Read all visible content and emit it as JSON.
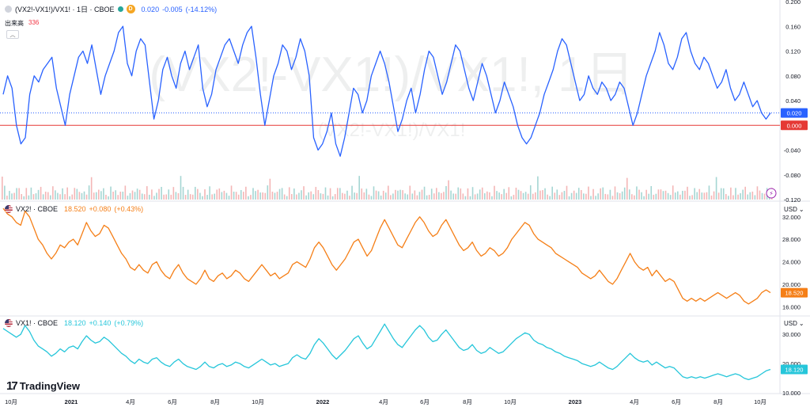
{
  "pane1": {
    "symbol": "(VX2!-VX1!)/VX1! · 1日 · CBOE",
    "badge": "D",
    "last": "0.020",
    "change": "-0.005",
    "change_pct": "(-14.12%)",
    "volume_label": "出来高",
    "volume_value": "336",
    "watermark_big": "(VX2!-VX1!)/VX1!, 1日",
    "watermark_small": "(VX2!-VX1!)/VX1!",
    "price_tag": "0.020",
    "zero_tag": "0.000",
    "axis_ticks": [
      "0.200",
      "0.160",
      "0.120",
      "0.080",
      "0.040",
      "-0.040",
      "-0.080",
      "-0.120"
    ]
  },
  "pane2": {
    "symbol": "VX2! · CBOE",
    "last": "18.520",
    "change": "+0.080",
    "change_pct": "(+0.43%)",
    "currency": "USD",
    "price_tag": "18.520",
    "axis_ticks": [
      "32.000",
      "28.000",
      "24.000",
      "20.000",
      "16.000"
    ]
  },
  "pane3": {
    "symbol": "VX1! · CBOE",
    "last": "18.120",
    "change": "+0.140",
    "change_pct": "(+0.79%)",
    "currency": "USD",
    "price_tag": "18.120",
    "axis_ticks": [
      "30.000",
      "20.000",
      "10.000"
    ]
  },
  "time_axis": [
    "10月",
    "2021",
    "4月",
    "6月",
    "8月",
    "10月",
    "2022",
    "4月",
    "6月",
    "8月",
    "10月",
    "2023",
    "4月",
    "6月",
    "8月",
    "10月"
  ],
  "brand": "TradingView",
  "colors": {
    "spread": "#2962ff",
    "vx2": "#f57f17",
    "vx1": "#26c6da",
    "zero_line": "#e53935",
    "vol_up": "#a5d6d3",
    "vol_down": "#f4b6b6",
    "negative": "#f23645"
  },
  "chart_data": [
    {
      "type": "line",
      "title": "(VX2!-VX1!)/VX1! · 1日 · CBOE",
      "x_start": "2020-10",
      "x_end": "2023-10",
      "ylim": [
        -0.12,
        0.2
      ],
      "reference_line": 0,
      "series": [
        {
          "values": [
            0.05,
            0.08,
            0.06,
            0.0,
            -0.03,
            -0.02,
            0.05,
            0.08,
            0.07,
            0.09,
            0.1,
            0.11,
            0.06,
            0.03,
            0.0,
            0.05,
            0.08,
            0.11,
            0.12,
            0.1,
            0.13,
            0.09,
            0.05,
            0.08,
            0.1,
            0.12,
            0.15,
            0.16,
            0.1,
            0.08,
            0.12,
            0.14,
            0.13,
            0.07,
            0.01,
            0.04,
            0.09,
            0.11,
            0.08,
            0.06,
            0.1,
            0.12,
            0.09,
            0.11,
            0.13,
            0.06,
            0.03,
            0.05,
            0.09,
            0.11,
            0.13,
            0.14,
            0.12,
            0.1,
            0.13,
            0.15,
            0.16,
            0.11,
            0.05,
            0.0,
            0.04,
            0.08,
            0.1,
            0.13,
            0.12,
            0.09,
            0.11,
            0.14,
            0.12,
            0.08,
            -0.02,
            -0.04,
            -0.03,
            -0.01,
            0.02,
            -0.03,
            -0.05,
            -0.02,
            0.02,
            0.06,
            0.05,
            0.02,
            0.04,
            0.08,
            0.1,
            0.12,
            0.1,
            0.07,
            0.03,
            -0.01,
            0.01,
            0.04,
            0.06,
            0.02,
            0.05,
            0.09,
            0.12,
            0.11,
            0.08,
            0.05,
            0.07,
            0.1,
            0.13,
            0.12,
            0.09,
            0.06,
            0.04,
            0.07,
            0.1,
            0.08,
            0.05,
            0.02,
            0.04,
            0.07,
            0.05,
            0.03,
            0.0,
            -0.02,
            -0.03,
            -0.02,
            0.0,
            0.02,
            0.05,
            0.07,
            0.09,
            0.12,
            0.14,
            0.13,
            0.1,
            0.07,
            0.04,
            0.05,
            0.08,
            0.06,
            0.05,
            0.07,
            0.06,
            0.04,
            0.05,
            0.07,
            0.06,
            0.03,
            0.0,
            0.02,
            0.05,
            0.08,
            0.1,
            0.12,
            0.15,
            0.13,
            0.1,
            0.09,
            0.11,
            0.14,
            0.15,
            0.12,
            0.1,
            0.09,
            0.11,
            0.1,
            0.08,
            0.06,
            0.07,
            0.09,
            0.06,
            0.04,
            0.05,
            0.07,
            0.05,
            0.03,
            0.04,
            0.02,
            0.01,
            0.02
          ]
        }
      ]
    },
    {
      "type": "line",
      "title": "VX2! · CBOE",
      "x_start": "2020-10",
      "x_end": "2023-10",
      "ylim": [
        14.5,
        34.5
      ],
      "series": [
        {
          "values": [
            33.5,
            32.5,
            32.0,
            31.0,
            30.5,
            33.0,
            32.0,
            30.0,
            28.0,
            27.0,
            25.5,
            24.5,
            25.5,
            27.0,
            26.5,
            27.5,
            28.0,
            27.0,
            29.0,
            31.0,
            29.5,
            28.5,
            29.0,
            30.5,
            30.0,
            28.5,
            27.0,
            25.5,
            24.5,
            23.0,
            22.5,
            23.5,
            22.5,
            22.0,
            23.5,
            24.0,
            22.5,
            21.5,
            21.0,
            22.5,
            23.5,
            22.0,
            21.0,
            20.5,
            20.0,
            21.0,
            22.5,
            21.0,
            20.5,
            21.5,
            22.0,
            21.0,
            21.5,
            22.5,
            22.0,
            21.0,
            20.5,
            21.5,
            22.5,
            23.5,
            22.5,
            21.5,
            22.0,
            21.0,
            21.5,
            22.0,
            23.5,
            24.0,
            23.5,
            23.0,
            24.5,
            26.5,
            27.5,
            26.5,
            25.0,
            23.5,
            22.5,
            23.5,
            24.5,
            26.0,
            27.5,
            28.0,
            26.5,
            25.0,
            26.0,
            28.0,
            30.0,
            31.5,
            30.0,
            28.5,
            27.0,
            26.5,
            28.0,
            29.5,
            31.0,
            32.0,
            31.0,
            29.5,
            28.5,
            29.0,
            30.5,
            31.5,
            30.0,
            28.5,
            27.0,
            26.0,
            26.5,
            27.5,
            26.0,
            25.0,
            25.5,
            26.5,
            26.0,
            25.0,
            25.5,
            26.5,
            28.0,
            29.0,
            30.0,
            31.0,
            30.5,
            29.0,
            28.0,
            27.5,
            27.0,
            26.5,
            25.5,
            25.0,
            24.5,
            24.0,
            23.5,
            23.0,
            22.0,
            21.5,
            21.0,
            21.5,
            22.5,
            21.5,
            20.5,
            20.0,
            21.0,
            22.5,
            24.0,
            25.5,
            24.0,
            23.0,
            22.5,
            23.0,
            21.5,
            22.5,
            21.5,
            20.5,
            21.0,
            20.5,
            19.0,
            17.5,
            17.0,
            17.5,
            17.0,
            17.5,
            17.0,
            17.5,
            18.0,
            18.5,
            18.0,
            17.5,
            18.0,
            18.5,
            18.0,
            17.0,
            16.5,
            17.0,
            17.5,
            18.5,
            19.0,
            18.5
          ]
        }
      ]
    },
    {
      "type": "line",
      "title": "VX1! · CBOE",
      "x_start": "2020-10",
      "x_end": "2023-10",
      "ylim": [
        10,
        36
      ],
      "series": [
        {
          "values": [
            32.0,
            31.0,
            30.0,
            29.0,
            30.0,
            33.0,
            31.0,
            28.0,
            26.0,
            25.0,
            24.0,
            22.5,
            23.5,
            25.0,
            24.0,
            25.5,
            26.0,
            25.0,
            27.5,
            29.5,
            28.0,
            27.0,
            27.5,
            29.0,
            28.0,
            26.5,
            25.0,
            23.5,
            22.5,
            21.0,
            20.0,
            21.5,
            20.5,
            20.0,
            21.5,
            22.0,
            20.5,
            19.5,
            19.0,
            20.5,
            21.5,
            20.0,
            19.0,
            18.5,
            18.0,
            19.0,
            20.5,
            19.0,
            18.5,
            19.5,
            20.0,
            19.0,
            19.5,
            20.5,
            20.0,
            19.0,
            18.5,
            19.5,
            20.5,
            21.5,
            20.5,
            19.5,
            20.0,
            19.0,
            19.5,
            20.0,
            22.0,
            23.0,
            22.0,
            21.5,
            23.5,
            26.5,
            28.5,
            27.0,
            25.0,
            23.0,
            21.5,
            23.0,
            24.5,
            26.5,
            28.5,
            29.5,
            27.0,
            25.0,
            26.0,
            28.5,
            31.0,
            33.5,
            31.0,
            28.5,
            26.5,
            25.5,
            27.5,
            29.5,
            31.5,
            33.0,
            31.5,
            29.0,
            27.5,
            28.0,
            30.0,
            31.5,
            29.5,
            27.5,
            25.5,
            24.5,
            25.0,
            26.5,
            24.5,
            23.5,
            24.0,
            25.5,
            24.5,
            23.5,
            24.0,
            25.5,
            27.0,
            28.5,
            29.5,
            30.5,
            30.0,
            28.0,
            27.0,
            26.5,
            25.5,
            25.0,
            24.0,
            23.5,
            22.5,
            22.0,
            21.5,
            21.0,
            20.0,
            19.5,
            19.0,
            19.5,
            20.5,
            19.5,
            18.5,
            18.0,
            19.0,
            20.5,
            22.0,
            23.5,
            22.0,
            21.0,
            20.5,
            21.0,
            19.5,
            20.5,
            19.5,
            18.5,
            19.0,
            18.5,
            17.0,
            15.5,
            15.0,
            15.5,
            15.0,
            15.5,
            15.0,
            15.5,
            16.0,
            16.5,
            16.0,
            15.5,
            16.0,
            16.5,
            16.0,
            15.0,
            14.5,
            15.0,
            15.5,
            16.5,
            17.5,
            18.0
          ]
        }
      ]
    }
  ]
}
